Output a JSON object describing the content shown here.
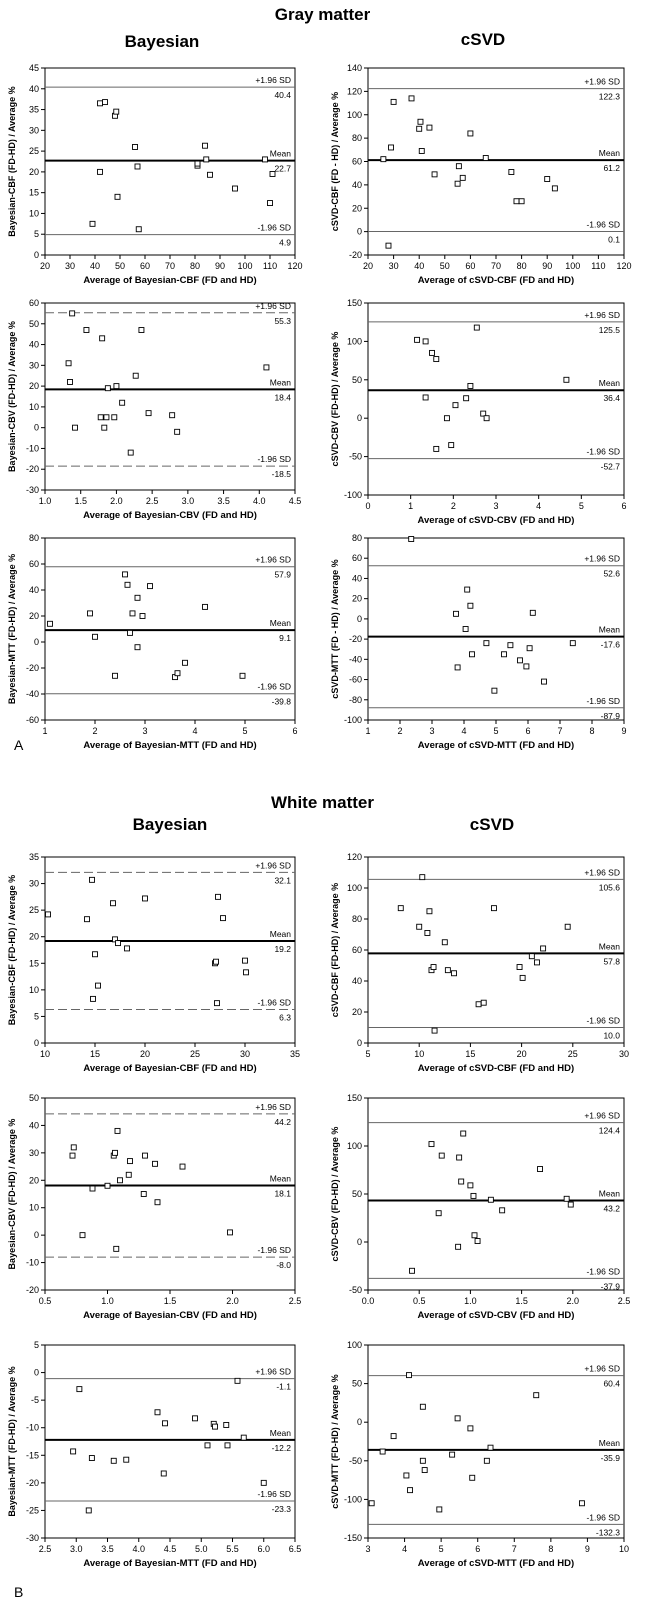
{
  "figure": {
    "sections": [
      {
        "title": "Gray matter",
        "columns": [
          "Bayesian",
          "cSVD"
        ],
        "panel_label": "A"
      },
      {
        "title": "White matter",
        "columns": [
          "Bayesian",
          "cSVD"
        ],
        "panel_label": "B"
      }
    ],
    "line_labels": {
      "upper": "+1.96 SD",
      "mean": "Mean",
      "lower": "-1.96 SD"
    }
  },
  "chart_data": [
    {
      "type": "scatter",
      "ylabel": "Bayesian-CBF (FD-HD) / Average %",
      "xlabel": "Average of Bayesian-CBF (FD and HD)",
      "xlim": [
        20,
        120
      ],
      "xticks": [
        20,
        30,
        40,
        50,
        60,
        70,
        80,
        90,
        100,
        110,
        120
      ],
      "ylim": [
        0,
        45
      ],
      "yticks": [
        0,
        5,
        10,
        15,
        20,
        25,
        30,
        35,
        40,
        45
      ],
      "line_style": "solid",
      "mean": 22.7,
      "upper": 40.4,
      "lower": 4.9,
      "labels": {
        "upper": "40.4",
        "mean": "22.7",
        "lower": "4.9"
      },
      "points": [
        [
          39,
          7.5
        ],
        [
          42,
          20
        ],
        [
          42,
          36.5
        ],
        [
          44,
          36.8
        ],
        [
          48,
          33.5
        ],
        [
          48.5,
          34.5
        ],
        [
          49,
          14
        ],
        [
          56,
          26
        ],
        [
          57,
          21.3
        ],
        [
          57.5,
          6.2
        ],
        [
          81,
          21.5
        ],
        [
          81,
          22
        ],
        [
          84,
          26.3
        ],
        [
          84.5,
          23
        ],
        [
          86,
          19.3
        ],
        [
          96,
          16
        ],
        [
          108,
          23
        ],
        [
          110,
          12.5
        ],
        [
          111,
          19.5
        ]
      ]
    },
    {
      "type": "scatter",
      "ylabel": "cSVD-CBF (FD - HD) / Average %",
      "xlabel": "Average of cSVD-CBF (FD and HD)",
      "xlim": [
        20,
        120
      ],
      "xticks": [
        20,
        30,
        40,
        50,
        60,
        70,
        80,
        90,
        100,
        110,
        120
      ],
      "ylim": [
        -20,
        140
      ],
      "yticks": [
        -20,
        0,
        20,
        40,
        60,
        80,
        100,
        120,
        140
      ],
      "line_style": "solid",
      "mean": 61.2,
      "upper": 122.3,
      "lower": 0.1,
      "labels": {
        "upper": "122.3",
        "mean": "61.2",
        "lower": "0.1"
      },
      "points": [
        [
          26,
          62
        ],
        [
          29,
          72
        ],
        [
          30,
          111
        ],
        [
          28,
          -12
        ],
        [
          37,
          114
        ],
        [
          40,
          88
        ],
        [
          40.5,
          94
        ],
        [
          41,
          69
        ],
        [
          44,
          89
        ],
        [
          46,
          49
        ],
        [
          55,
          41
        ],
        [
          55.5,
          56
        ],
        [
          57,
          46
        ],
        [
          60,
          84
        ],
        [
          66,
          63
        ],
        [
          76,
          51
        ],
        [
          78,
          26
        ],
        [
          80,
          26
        ],
        [
          90,
          45
        ],
        [
          93,
          37
        ]
      ]
    },
    {
      "type": "scatter",
      "ylabel": "Bayesian-CBV (FD-HD) / Average %",
      "xlabel": "Average of Bayesian-CBV (FD and HD)",
      "xlim": [
        1.0,
        4.5
      ],
      "xticks": [
        "1.0",
        "1.5",
        "2.0",
        "2.5",
        "3.0",
        "3.5",
        "4.0",
        "4.5"
      ],
      "ylim": [
        -30,
        60
      ],
      "yticks": [
        -30,
        -20,
        -10,
        0,
        10,
        20,
        30,
        40,
        50,
        60
      ],
      "line_style": "dashed",
      "mean": 18.4,
      "upper": 55.3,
      "lower": -18.5,
      "labels": {
        "upper": "55.3",
        "mean": "18.4",
        "lower": "-18.5"
      },
      "points": [
        [
          1.33,
          31
        ],
        [
          1.35,
          22
        ],
        [
          1.38,
          55
        ],
        [
          1.42,
          0
        ],
        [
          1.58,
          47
        ],
        [
          1.78,
          5
        ],
        [
          1.8,
          43
        ],
        [
          1.83,
          0
        ],
        [
          1.86,
          5
        ],
        [
          1.88,
          19
        ],
        [
          1.97,
          5
        ],
        [
          2.0,
          20
        ],
        [
          2.08,
          12
        ],
        [
          2.2,
          -12
        ],
        [
          2.27,
          25
        ],
        [
          2.35,
          47
        ],
        [
          2.45,
          7
        ],
        [
          2.78,
          6
        ],
        [
          2.85,
          -2
        ],
        [
          4.1,
          29
        ]
      ]
    },
    {
      "type": "scatter",
      "ylabel": "cSVD-CBV (FD-HD) / Average %",
      "xlabel": "Average of cSVD-CBV (FD and HD)",
      "xlim": [
        0,
        6
      ],
      "xticks": [
        "0",
        "1",
        "2",
        "3",
        "4",
        "5",
        "6"
      ],
      "ylim": [
        -100,
        150
      ],
      "yticks": [
        -100,
        -50,
        0,
        50,
        100,
        150
      ],
      "line_style": "solid",
      "mean": 36.4,
      "upper": 125.5,
      "lower": -52.7,
      "labels": {
        "upper": "125.5",
        "mean": "36.4",
        "lower": "-52.7"
      },
      "points": [
        [
          1.15,
          102
        ],
        [
          1.35,
          100
        ],
        [
          1.35,
          27
        ],
        [
          1.5,
          85
        ],
        [
          1.6,
          77
        ],
        [
          1.6,
          -40
        ],
        [
          1.85,
          0
        ],
        [
          1.95,
          -35
        ],
        [
          2.05,
          17
        ],
        [
          2.3,
          26
        ],
        [
          2.4,
          42
        ],
        [
          2.55,
          118
        ],
        [
          2.7,
          6
        ],
        [
          2.78,
          0
        ],
        [
          4.65,
          50
        ]
      ]
    },
    {
      "type": "scatter",
      "ylabel": "Bayesian-MTT (FD-HD) / Average %",
      "xlabel": "Average of Bayesian-MTT (FD and  HD)",
      "xlim": [
        1,
        6
      ],
      "xticks": [
        "1",
        "2",
        "3",
        "4",
        "5",
        "6"
      ],
      "ylim": [
        -60,
        80
      ],
      "yticks": [
        -60,
        -40,
        -20,
        0,
        20,
        40,
        60,
        80
      ],
      "line_style": "solid",
      "mean": 9.1,
      "upper": 57.9,
      "lower": -39.8,
      "labels": {
        "upper": "57.9",
        "mean": "9.1",
        "lower": "-39.8"
      },
      "points": [
        [
          1.1,
          14
        ],
        [
          1.9,
          22
        ],
        [
          2.0,
          4
        ],
        [
          2.4,
          -26
        ],
        [
          2.6,
          52
        ],
        [
          2.65,
          44
        ],
        [
          2.7,
          7
        ],
        [
          2.75,
          22
        ],
        [
          2.85,
          -4
        ],
        [
          2.85,
          34
        ],
        [
          2.95,
          20
        ],
        [
          3.1,
          43
        ],
        [
          3.6,
          -27
        ],
        [
          3.65,
          -24
        ],
        [
          3.8,
          -16
        ],
        [
          4.2,
          27
        ],
        [
          4.95,
          -26
        ]
      ]
    },
    {
      "type": "scatter",
      "ylabel": "cSVD-MTT (FD - HD) / Average %",
      "xlabel": "Average of cSVD-MTT (FD and HD)",
      "xlim": [
        1,
        9
      ],
      "xticks": [
        "1",
        "2",
        "3",
        "4",
        "5",
        "6",
        "7",
        "8",
        "9"
      ],
      "ylim": [
        -100,
        80
      ],
      "yticks": [
        -100,
        -80,
        -60,
        -40,
        -20,
        0,
        20,
        40,
        60,
        80
      ],
      "line_style": "solid",
      "mean": -17.6,
      "upper": 52.6,
      "lower": -87.9,
      "labels": {
        "upper": "52.6",
        "mean": "-17.6",
        "lower": "-87.9"
      },
      "points": [
        [
          2.35,
          79
        ],
        [
          3.75,
          5
        ],
        [
          3.8,
          -48
        ],
        [
          4.05,
          -10
        ],
        [
          4.1,
          29
        ],
        [
          4.2,
          13
        ],
        [
          4.25,
          -35
        ],
        [
          4.7,
          -24
        ],
        [
          4.95,
          -71
        ],
        [
          5.25,
          -35
        ],
        [
          5.45,
          -26
        ],
        [
          5.75,
          -41
        ],
        [
          5.95,
          -47
        ],
        [
          6.05,
          -29
        ],
        [
          6.15,
          6
        ],
        [
          6.5,
          -62
        ],
        [
          7.4,
          -24
        ]
      ]
    },
    {
      "type": "scatter",
      "ylabel": "Bayesian-CBF (FD-HD) / Average %",
      "xlabel": "Average of Bayesian-CBF (FD and HD)",
      "xlim": [
        10,
        35
      ],
      "xticks": [
        "10",
        "15",
        "20",
        "25",
        "30",
        "35"
      ],
      "ylim": [
        0,
        35
      ],
      "yticks": [
        0,
        5,
        10,
        15,
        20,
        25,
        30,
        35
      ],
      "line_style": "dashed",
      "mean": 19.2,
      "upper": 32.1,
      "lower": 6.3,
      "labels": {
        "upper": "32.1",
        "mean": "19.2",
        "lower": "6.3"
      },
      "points": [
        [
          10.3,
          24.2
        ],
        [
          14.2,
          23.3
        ],
        [
          14.7,
          30.7
        ],
        [
          14.8,
          8.3
        ],
        [
          15.0,
          16.7
        ],
        [
          15.3,
          10.8
        ],
        [
          16.8,
          26.3
        ],
        [
          17.0,
          19.5
        ],
        [
          17.3,
          18.8
        ],
        [
          18.2,
          17.8
        ],
        [
          20.0,
          27.2
        ],
        [
          27.0,
          15.0
        ],
        [
          27.1,
          15.3
        ],
        [
          27.2,
          7.5
        ],
        [
          27.3,
          27.5
        ],
        [
          27.8,
          23.5
        ],
        [
          30.0,
          15.5
        ],
        [
          30.1,
          13.3
        ]
      ]
    },
    {
      "type": "scatter",
      "ylabel": "cSVD-CBF (FD-HD) / Average %",
      "xlabel": "Average of cSVD-CBF (FD and HD)",
      "xlim": [
        5,
        30
      ],
      "xticks": [
        "5",
        "10",
        "15",
        "20",
        "25",
        "30"
      ],
      "ylim": [
        0,
        120
      ],
      "yticks": [
        0,
        20,
        40,
        60,
        80,
        100,
        120
      ],
      "line_style": "solid",
      "mean": 57.8,
      "upper": 105.6,
      "lower": 10.0,
      "labels": {
        "upper": "105.6",
        "mean": "57.8",
        "lower": "10.0"
      },
      "points": [
        [
          8.2,
          87
        ],
        [
          10,
          75
        ],
        [
          10.3,
          107
        ],
        [
          10.8,
          71
        ],
        [
          11.0,
          85
        ],
        [
          11.2,
          47
        ],
        [
          11.4,
          49
        ],
        [
          11.5,
          8
        ],
        [
          12.5,
          65
        ],
        [
          12.8,
          47
        ],
        [
          13.4,
          45
        ],
        [
          15.8,
          25
        ],
        [
          16.3,
          26
        ],
        [
          17.3,
          87
        ],
        [
          19.8,
          49
        ],
        [
          20.1,
          42
        ],
        [
          21.0,
          56
        ],
        [
          21.5,
          52
        ],
        [
          22.1,
          61
        ],
        [
          24.5,
          75
        ]
      ]
    },
    {
      "type": "scatter",
      "ylabel": "Bayesian-CBV (FD-HD) / Average %",
      "xlabel": "Average of Bayesian-CBV (FD and HD)",
      "xlim": [
        0.5,
        2.5
      ],
      "xticks": [
        "0.5",
        "1.0",
        "1.5",
        "2.0",
        "2.5"
      ],
      "ylim": [
        -20,
        50
      ],
      "yticks": [
        -20,
        -10,
        0,
        10,
        20,
        30,
        40,
        50
      ],
      "line_style": "dashed",
      "mean": 18.1,
      "upper": 44.2,
      "lower": -8.0,
      "labels": {
        "upper": "44.2",
        "mean": "18.1",
        "lower": "-8.0"
      },
      "points": [
        [
          0.72,
          29
        ],
        [
          0.73,
          32
        ],
        [
          0.8,
          0
        ],
        [
          0.88,
          17
        ],
        [
          1.0,
          18
        ],
        [
          1.05,
          29
        ],
        [
          1.06,
          30
        ],
        [
          1.07,
          -5
        ],
        [
          1.08,
          38
        ],
        [
          1.1,
          20
        ],
        [
          1.17,
          22
        ],
        [
          1.18,
          27
        ],
        [
          1.29,
          15
        ],
        [
          1.3,
          29
        ],
        [
          1.38,
          26
        ],
        [
          1.4,
          12
        ],
        [
          1.6,
          25
        ],
        [
          1.98,
          1
        ]
      ]
    },
    {
      "type": "scatter",
      "ylabel": "cSVD-CBV (FD-HD) / Average %",
      "xlabel": "Average of cSVD-CBV (FD and HD)",
      "xlim": [
        0,
        2.5
      ],
      "xticks": [
        "0.0",
        "0.5",
        "1.0",
        "1.5",
        "2.0",
        "2.5"
      ],
      "ylim": [
        -50,
        150
      ],
      "yticks": [
        -50,
        0,
        50,
        100,
        150
      ],
      "line_style": "solid",
      "mean": 43.2,
      "upper": 124.4,
      "lower": -37.9,
      "labels": {
        "upper": "124.4",
        "mean": "43.2",
        "lower": "-37.9"
      },
      "points": [
        [
          0.43,
          -30
        ],
        [
          0.62,
          102
        ],
        [
          0.69,
          30
        ],
        [
          0.72,
          90
        ],
        [
          0.88,
          -5
        ],
        [
          0.89,
          88
        ],
        [
          0.91,
          63
        ],
        [
          0.93,
          113
        ],
        [
          1.0,
          59
        ],
        [
          1.03,
          48
        ],
        [
          1.04,
          7
        ],
        [
          1.07,
          1
        ],
        [
          1.2,
          44
        ],
        [
          1.31,
          33
        ],
        [
          1.68,
          76
        ],
        [
          1.94,
          45
        ],
        [
          1.98,
          39
        ]
      ]
    },
    {
      "type": "scatter",
      "ylabel": "Bayesian-MTT (FD-HD) / Average %",
      "xlabel": "Average of Bayesian-MTT (FD and  HD)",
      "xlim": [
        2.5,
        6.5
      ],
      "xticks": [
        "2.5",
        "3.0",
        "3.5",
        "4.0",
        "4.5",
        "5.0",
        "5.5",
        "6.0",
        "6.5"
      ],
      "ylim": [
        -30,
        5
      ],
      "yticks": [
        -30,
        -25,
        -20,
        -15,
        -10,
        -5,
        0,
        5
      ],
      "line_style": "solid",
      "mean": -12.2,
      "upper": -1.1,
      "lower": -23.3,
      "labels": {
        "upper": "-1.1",
        "mean": "-12.2",
        "lower": "-23.3"
      },
      "points": [
        [
          2.95,
          -14.3
        ],
        [
          3.05,
          -3
        ],
        [
          3.2,
          -25
        ],
        [
          3.25,
          -15.5
        ],
        [
          3.6,
          -16
        ],
        [
          3.8,
          -15.8
        ],
        [
          4.3,
          -7.2
        ],
        [
          4.4,
          -18.3
        ],
        [
          4.42,
          -9.2
        ],
        [
          4.9,
          -8.3
        ],
        [
          5.1,
          -13.2
        ],
        [
          5.2,
          -9.3
        ],
        [
          5.22,
          -9.8
        ],
        [
          5.4,
          -9.5
        ],
        [
          5.42,
          -13.2
        ],
        [
          5.58,
          -1.5
        ],
        [
          5.68,
          -11.8
        ],
        [
          6.0,
          -20
        ]
      ]
    },
    {
      "type": "scatter",
      "ylabel": "cSVD-MTT (FD-HD) / Average %",
      "xlabel": "Average of cSVD-MTT (FD and HD)",
      "xlim": [
        3,
        10
      ],
      "xticks": [
        "3",
        "4",
        "5",
        "6",
        "7",
        "8",
        "9",
        "10"
      ],
      "ylim": [
        -150,
        100
      ],
      "yticks": [
        -150,
        -100,
        -50,
        0,
        50,
        100
      ],
      "line_style": "solid",
      "mean": -35.9,
      "upper": 60.4,
      "lower": -132.3,
      "labels": {
        "upper": "60.4",
        "mean": "-35.9",
        "lower": "-132.3"
      },
      "points": [
        [
          3.1,
          -105
        ],
        [
          3.4,
          -38
        ],
        [
          3.7,
          -18
        ],
        [
          4.05,
          -69
        ],
        [
          4.12,
          61
        ],
        [
          4.15,
          -88
        ],
        [
          4.5,
          20
        ],
        [
          4.5,
          -50
        ],
        [
          4.55,
          -62
        ],
        [
          4.95,
          -113
        ],
        [
          5.3,
          -42
        ],
        [
          5.45,
          5
        ],
        [
          5.8,
          -8
        ],
        [
          5.85,
          -72
        ],
        [
          6.25,
          -50
        ],
        [
          6.35,
          -33
        ],
        [
          7.6,
          35
        ],
        [
          8.85,
          -105
        ]
      ]
    }
  ]
}
